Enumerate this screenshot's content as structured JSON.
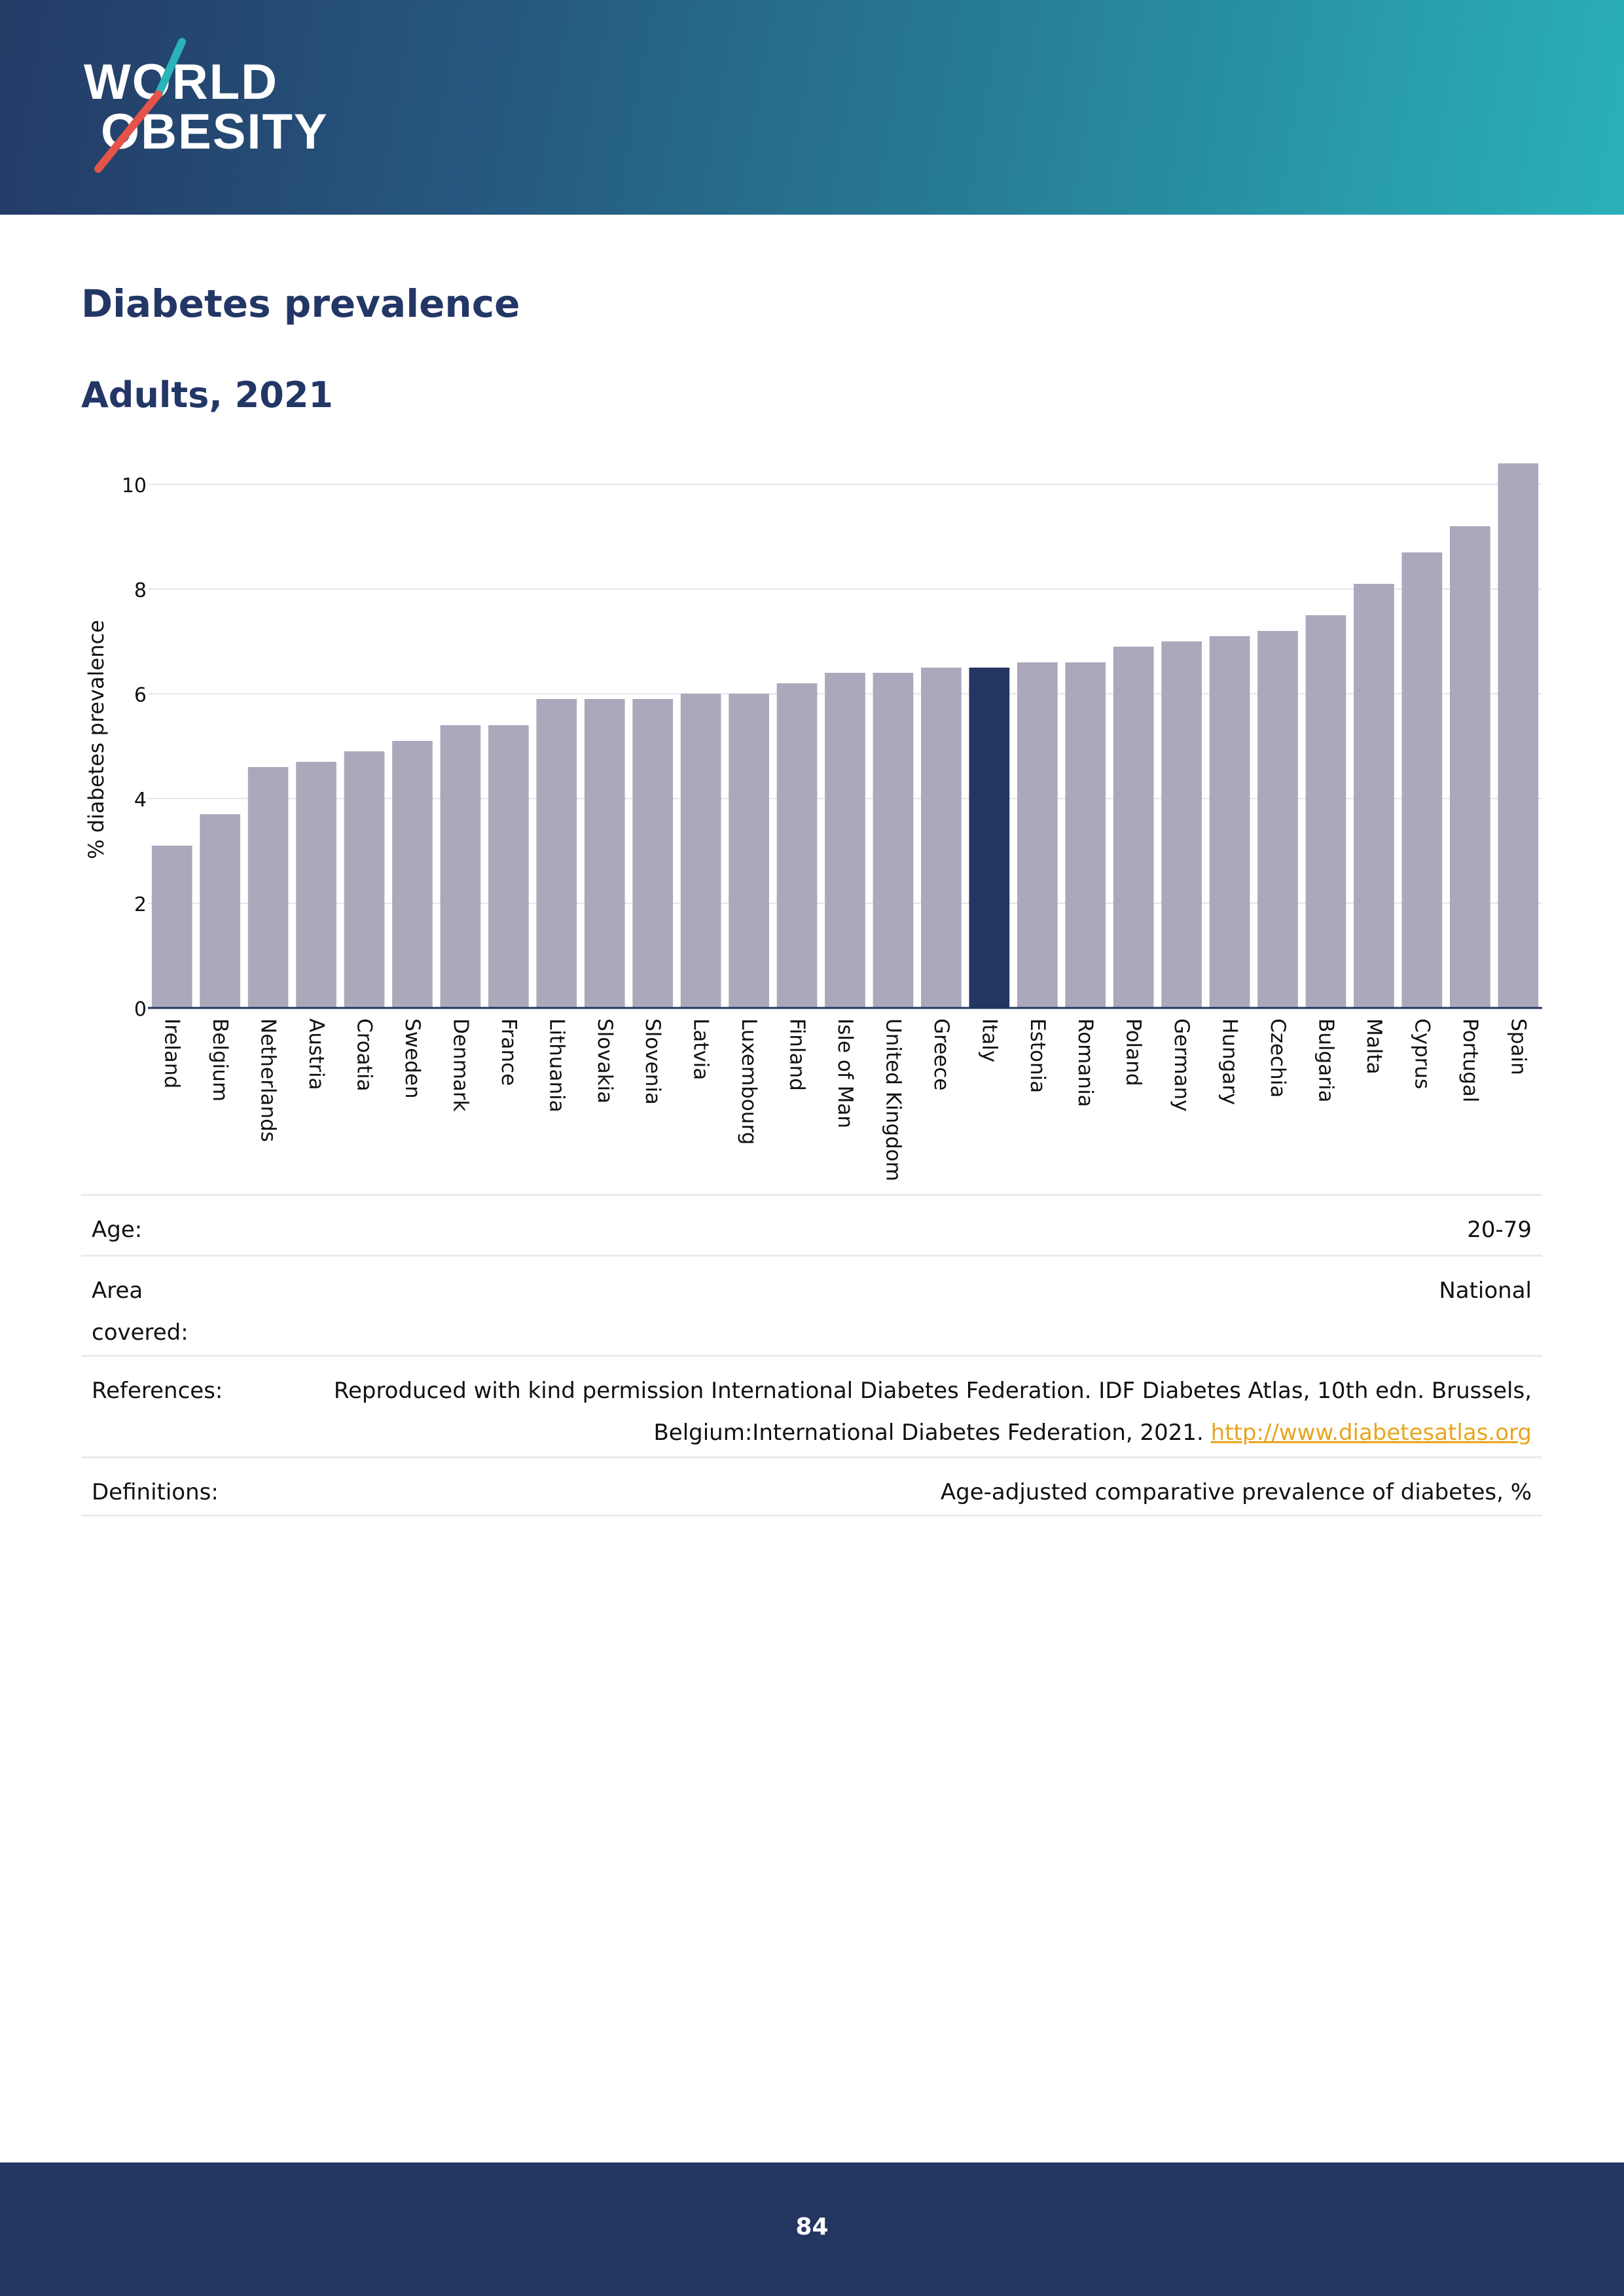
{
  "brand": {
    "logo_line1": "WORLD",
    "logo_line2": "OBESITY",
    "slash_colors": [
      "#2ab3b8",
      "#e5534b"
    ]
  },
  "header_gradient": [
    "#233b66",
    "#2ab1b8"
  ],
  "page": {
    "title": "Diabetes prevalence",
    "subtitle": "Adults, 2021",
    "page_number": "84"
  },
  "chart_data": {
    "type": "bar",
    "ylabel": "% diabetes prevalence",
    "xlabel": "",
    "ylim": [
      0,
      10.5
    ],
    "yticks": [
      0,
      2,
      4,
      6,
      8,
      10
    ],
    "grid": true,
    "highlight": "Italy",
    "bar_color": "#aba8bc",
    "highlight_color": "#233561",
    "categories": [
      "Ireland",
      "Belgium",
      "Netherlands",
      "Austria",
      "Croatia",
      "Sweden",
      "Denmark",
      "France",
      "Lithuania",
      "Slovakia",
      "Slovenia",
      "Latvia",
      "Luxembourg",
      "Finland",
      "Isle of Man",
      "United Kingdom",
      "Greece",
      "Italy",
      "Estonia",
      "Romania",
      "Poland",
      "Germany",
      "Hungary",
      "Czechia",
      "Bulgaria",
      "Malta",
      "Cyprus",
      "Portugal",
      "Spain"
    ],
    "values": [
      3.1,
      3.7,
      4.6,
      4.7,
      4.9,
      5.1,
      5.4,
      5.4,
      5.9,
      5.9,
      5.9,
      6.0,
      6.0,
      6.2,
      6.4,
      6.4,
      6.5,
      6.5,
      6.6,
      6.6,
      6.9,
      7.0,
      7.1,
      7.2,
      7.5,
      8.1,
      8.7,
      9.2,
      10.4
    ]
  },
  "info": {
    "age_label": "Age:",
    "age_value": "20-79",
    "area_label_1": "Area",
    "area_label_2": "covered:",
    "area_value": "National",
    "references_label": "References:",
    "references_line1": "Reproduced with kind permission International Diabetes Federation.  IDF Diabetes Atlas, 10th edn. Brussels,",
    "references_line2": "Belgium:International Diabetes Federation, 2021.",
    "references_link": "http://www.diabetesatlas.org",
    "definitions_label": "Definitions:",
    "definitions_value": "Age-adjusted comparative prevalence of diabetes, %"
  }
}
